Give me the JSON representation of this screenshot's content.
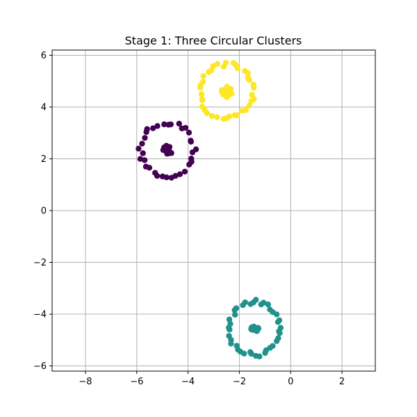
{
  "chart_data": {
    "type": "scatter",
    "title": "Stage 1: Three Circular Clusters",
    "xlabel": "",
    "ylabel": "",
    "xlim": [
      -9.3,
      3.3
    ],
    "ylim": [
      -6.2,
      6.2
    ],
    "x_ticks": [
      -8,
      -6,
      -4,
      -2,
      0,
      2
    ],
    "y_ticks": [
      -6,
      -4,
      -2,
      0,
      2,
      4,
      6
    ],
    "x_tick_labels": [
      "−8",
      "−6",
      "−4",
      "−2",
      "0",
      "2"
    ],
    "y_tick_labels": [
      "−6",
      "−4",
      "−2",
      "0",
      "2",
      "4",
      "6"
    ],
    "grid": true,
    "series": [
      {
        "color": "#440154",
        "clusters": [
          {
            "center": [
              -4.8,
              2.35
            ],
            "ring_radius": 1.05,
            "ring_points": 34,
            "core_radius": 0.2,
            "core_points": 14
          }
        ]
      },
      {
        "color": "#21918c",
        "clusters": [
          {
            "center": [
              -1.4,
              -4.55
            ],
            "ring_radius": 1.02,
            "ring_points": 40,
            "core_radius": 0.15,
            "core_points": 14
          }
        ]
      },
      {
        "color": "#fde725",
        "clusters": [
          {
            "center": [
              -2.5,
              4.6
            ],
            "ring_radius": 1.05,
            "ring_points": 38,
            "core_radius": 0.22,
            "core_points": 16
          }
        ]
      }
    ]
  }
}
